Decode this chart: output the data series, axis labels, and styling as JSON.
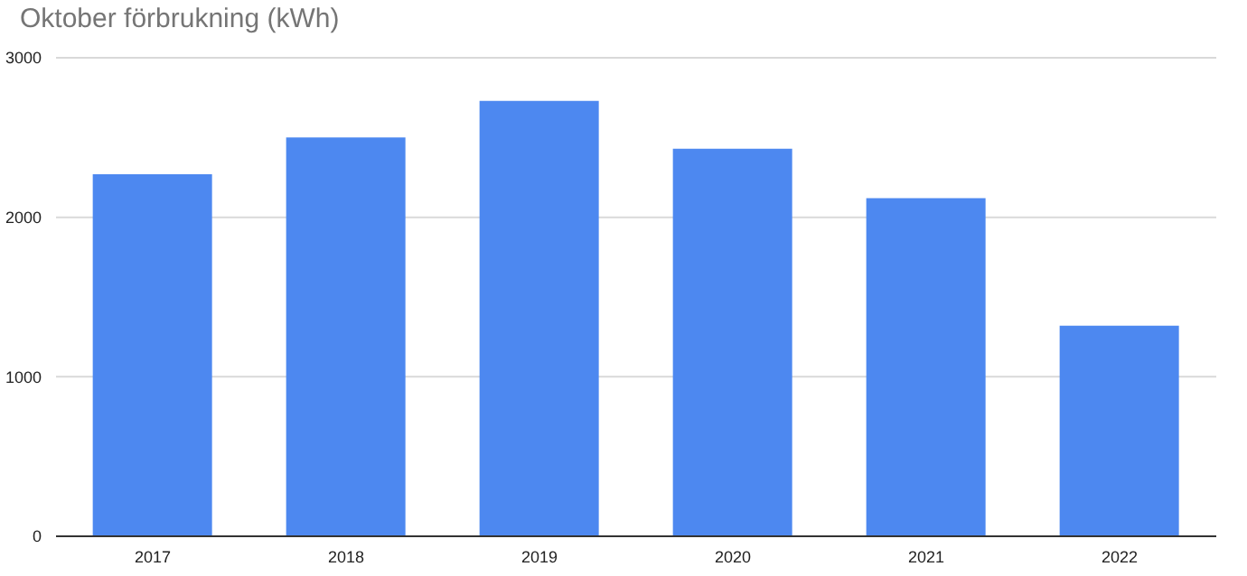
{
  "chart_data": {
    "type": "bar",
    "title": "Oktober förbrukning (kWh)",
    "categories": [
      "2017",
      "2018",
      "2019",
      "2020",
      "2021",
      "2022"
    ],
    "values": [
      2270,
      2500,
      2730,
      2430,
      2120,
      1320
    ],
    "color": "#4d88f0",
    "ylim": [
      0,
      3000
    ],
    "yticks": [
      0,
      1000,
      2000,
      3000
    ],
    "grid": "y"
  }
}
